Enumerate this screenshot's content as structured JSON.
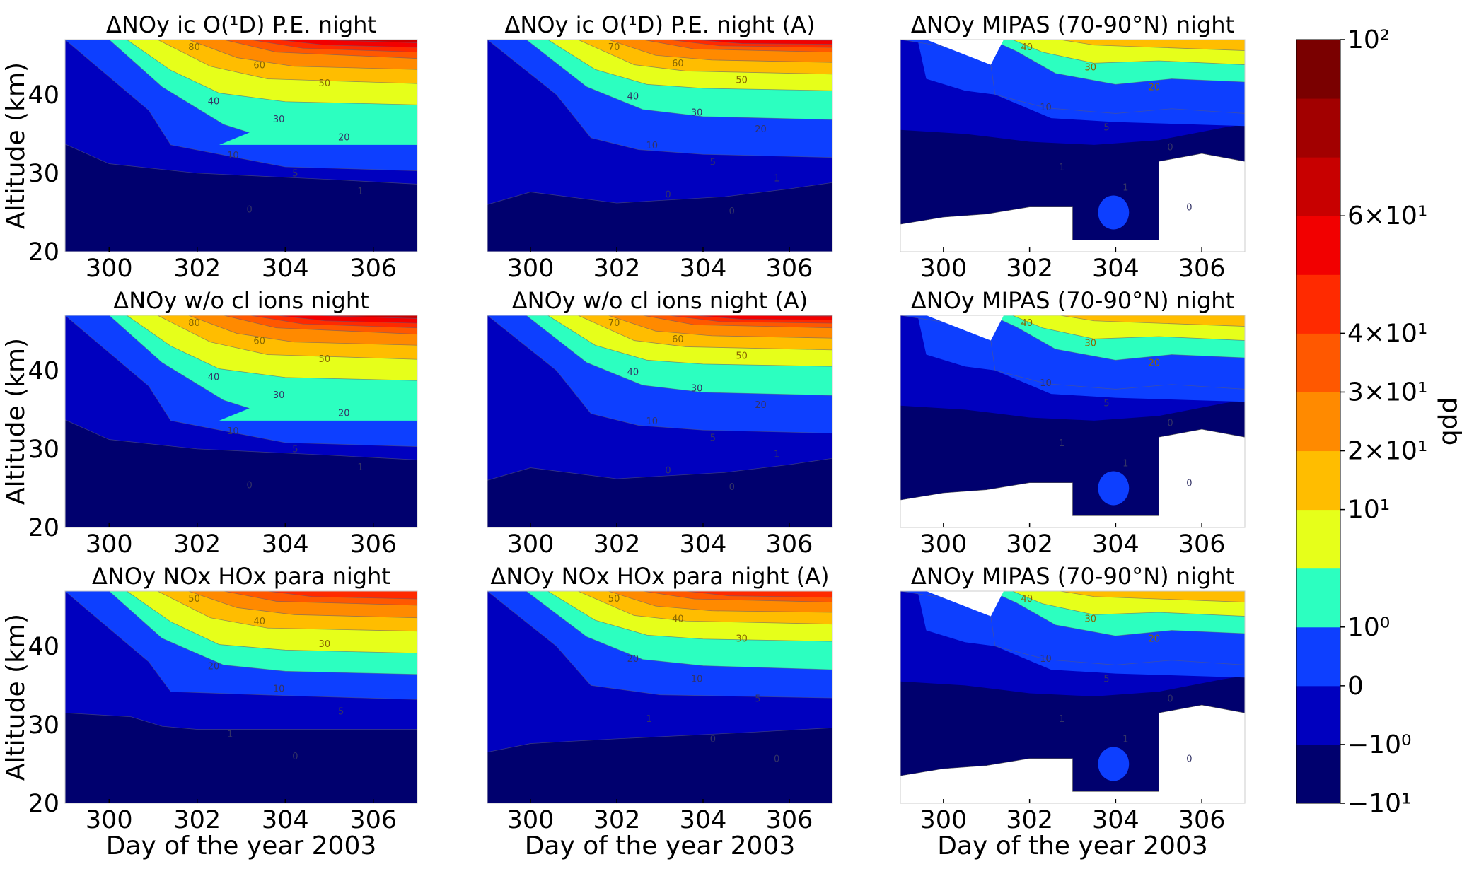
{
  "colors": {
    "levels": [
      "#00006e",
      "#0000bf",
      "#0d3fff",
      "#2cffc0",
      "#e6ff1a",
      "#ffbd00",
      "#ff8a00",
      "#ff5800",
      "#ff2a00",
      "#f20000",
      "#c80000",
      "#a20000",
      "#7a0000"
    ],
    "axis": "#000000",
    "contour_line": "#5a5a7a"
  },
  "chart_data": {
    "type": "contour",
    "x_label": "Day of the year 2003",
    "y_label": "Altitude (km)",
    "xlim": [
      299,
      307
    ],
    "ylim": [
      20,
      47
    ],
    "x_ticks": [
      "300",
      "302",
      "304",
      "306"
    ],
    "y_ticks": [
      "20",
      "30",
      "40"
    ],
    "colorbar": {
      "label": "ppb",
      "ticks": [
        "10²",
        "6×10¹",
        "4×10¹",
        "3×10¹",
        "2×10¹",
        "10¹",
        "10⁰",
        "0",
        "−10⁰",
        "−10¹"
      ]
    },
    "panels": [
      {
        "title": "ΔNOy ic O(¹D) P.E. night",
        "kind": "model",
        "variant": "a",
        "labels": [
          "80",
          "60",
          "50",
          "40",
          "30",
          "20",
          "10",
          "5",
          "1",
          "0"
        ]
      },
      {
        "title": "ΔNOy ic O(¹D) P.E. night (A)",
        "kind": "model",
        "variant": "b",
        "labels": [
          "70",
          "60",
          "50",
          "40",
          "30",
          "20",
          "10",
          "5",
          "1",
          "0",
          "0"
        ]
      },
      {
        "title": "ΔNOy MIPAS (70-90°N) night",
        "kind": "mipas",
        "labels": [
          "40",
          "30",
          "20",
          "10",
          "5",
          "0",
          "1",
          "1",
          "0"
        ]
      },
      {
        "title": "ΔNOy w/o cl ions night",
        "kind": "model",
        "variant": "a",
        "labels": [
          "80",
          "60",
          "50",
          "40",
          "30",
          "20",
          "10",
          "5",
          "1",
          "0"
        ]
      },
      {
        "title": "ΔNOy w/o cl ions night (A)",
        "kind": "model",
        "variant": "b",
        "labels": [
          "70",
          "60",
          "50",
          "40",
          "30",
          "20",
          "10",
          "5",
          "1",
          "0",
          "0"
        ]
      },
      {
        "title": "ΔNOy MIPAS (70-90°N) night",
        "kind": "mipas",
        "labels": [
          "40",
          "30",
          "20",
          "10",
          "5",
          "0",
          "1",
          "1",
          "0"
        ]
      },
      {
        "title": "ΔNOy NOx HOx para night",
        "kind": "model",
        "variant": "c",
        "labels": [
          "50",
          "40",
          "30",
          "20",
          "10",
          "5",
          "1",
          "0"
        ]
      },
      {
        "title": "ΔNOy NOx HOx para night (A)",
        "kind": "model",
        "variant": "d",
        "labels": [
          "50",
          "40",
          "30",
          "20",
          "10",
          "5",
          "1",
          "0",
          "0"
        ]
      },
      {
        "title": "ΔNOy MIPAS (70-90°N) night",
        "kind": "mipas",
        "labels": [
          "40",
          "30",
          "20",
          "10",
          "5",
          "0",
          "1",
          "1",
          "0"
        ]
      }
    ]
  }
}
